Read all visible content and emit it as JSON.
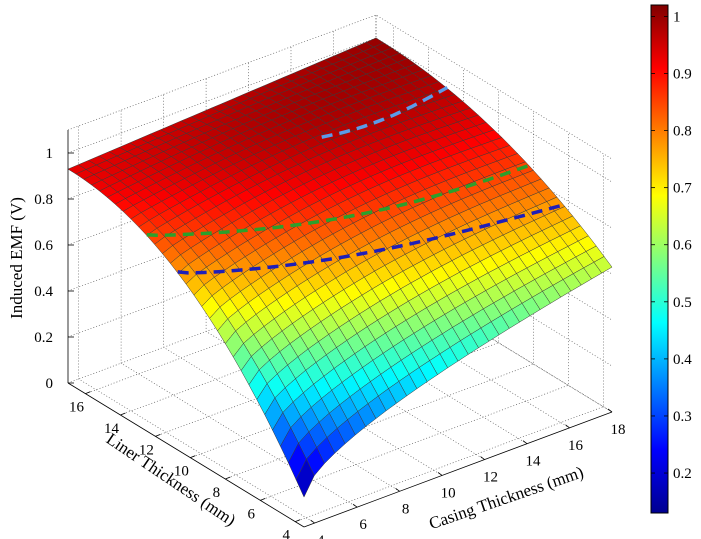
{
  "chart_data": {
    "type": "surface3d",
    "title": "",
    "xlabel": "Casing Thickness (mm)",
    "ylabel": "Liner Thickness (mm)",
    "zlabel": "Induced EMF (V)",
    "x_ticks": [
      "4",
      "6",
      "8",
      "10",
      "12",
      "14",
      "16",
      "18"
    ],
    "y_ticks": [
      "4",
      "6",
      "8",
      "10",
      "12",
      "14",
      "16"
    ],
    "z_ticks": [
      "0",
      "0.2",
      "0.4",
      "0.6",
      "0.8",
      "1"
    ],
    "xlim": [
      3.5,
      18
    ],
    "ylim": [
      3.5,
      17
    ],
    "zlim": [
      0,
      1.1
    ],
    "corner_values": {
      "x_min_y_min": 0.13,
      "x_max_y_min": 0.63,
      "x_min_y_max": 0.93,
      "x_max_y_max": 1.0
    },
    "grid": true,
    "colormap": "jet",
    "colorbar": {
      "range": [
        0.13,
        1.02
      ],
      "ticks": [
        "0.2",
        "0.3",
        "0.4",
        "0.5",
        "0.6",
        "0.7",
        "0.8",
        "0.9",
        "1"
      ]
    },
    "contour_lines": [
      {
        "level": 0.97,
        "color": "#5b9be8",
        "style": "dashed"
      },
      {
        "level": 0.85,
        "color": "#2ca02c",
        "style": "dashed"
      },
      {
        "level": 0.77,
        "color": "#1f1fb8",
        "style": "dashed"
      }
    ]
  }
}
